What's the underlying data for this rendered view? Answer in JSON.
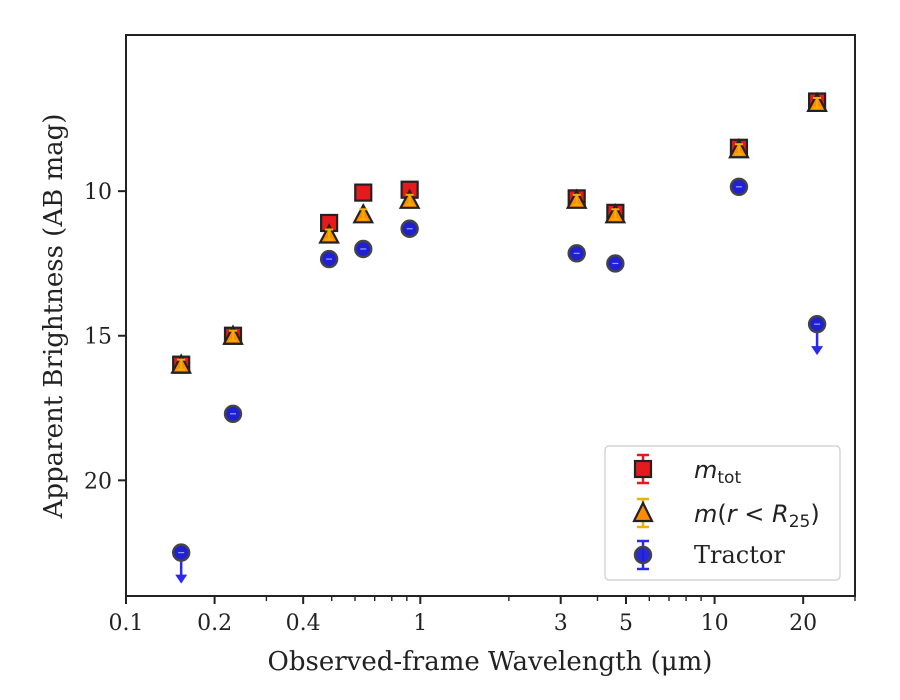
{
  "chart_data": {
    "type": "scatter",
    "xscale": "log",
    "yinvert": true,
    "xlim": [
      0.1,
      30
    ],
    "ylim": [
      24,
      4.6
    ],
    "xlabel": "Observed-frame Wavelength (μm)",
    "ylabel": "Apparent Brightness (AB mag)",
    "xticks": [
      {
        "value": 0.1,
        "label": "0.1"
      },
      {
        "value": 0.2,
        "label": "0.2"
      },
      {
        "value": 0.4,
        "label": "0.4"
      },
      {
        "value": 1,
        "label": "1"
      },
      {
        "value": 3,
        "label": "3"
      },
      {
        "value": 5,
        "label": "5"
      },
      {
        "value": 10,
        "label": "10"
      },
      {
        "value": 20,
        "label": "20"
      }
    ],
    "yticks": [
      {
        "value": 10,
        "label": "10"
      },
      {
        "value": 15,
        "label": "15"
      },
      {
        "value": 20,
        "label": "20"
      }
    ],
    "legend_position": "lower right",
    "grid": false,
    "series": [
      {
        "legend_label": "m_tot",
        "marker": "square",
        "color": "#e41a1c",
        "errcolor": "#e41a1c",
        "points": [
          {
            "x": 0.154,
            "y": 16.0
          },
          {
            "x": 0.231,
            "y": 15.0
          },
          {
            "x": 0.49,
            "y": 11.1
          },
          {
            "x": 0.64,
            "y": 10.05
          },
          {
            "x": 0.92,
            "y": 9.95
          },
          {
            "x": 3.4,
            "y": 10.25
          },
          {
            "x": 4.6,
            "y": 10.75
          },
          {
            "x": 12.1,
            "y": 8.5
          },
          {
            "x": 22.3,
            "y": 6.9
          }
        ]
      },
      {
        "legend_label": "m(r<R25)",
        "marker": "triangle",
        "color": "#ff8c00",
        "errcolor": "#f0b000",
        "points": [
          {
            "x": 0.154,
            "y": 16.0
          },
          {
            "x": 0.231,
            "y": 15.0
          },
          {
            "x": 0.49,
            "y": 11.5
          },
          {
            "x": 0.64,
            "y": 10.8
          },
          {
            "x": 0.92,
            "y": 10.3
          },
          {
            "x": 3.4,
            "y": 10.3
          },
          {
            "x": 4.6,
            "y": 10.8
          },
          {
            "x": 12.1,
            "y": 8.55
          },
          {
            "x": 22.3,
            "y": 6.95
          }
        ]
      },
      {
        "legend_label": "Tractor",
        "marker": "circle",
        "color": "#1f1fd6",
        "errcolor": "#2a2aee",
        "points": [
          {
            "x": 0.154,
            "y": 22.5,
            "upper_limit": true
          },
          {
            "x": 0.231,
            "y": 17.7
          },
          {
            "x": 0.49,
            "y": 12.35
          },
          {
            "x": 0.64,
            "y": 12.0
          },
          {
            "x": 0.92,
            "y": 11.3
          },
          {
            "x": 3.4,
            "y": 12.15
          },
          {
            "x": 4.6,
            "y": 12.5
          },
          {
            "x": 12.1,
            "y": 9.85
          },
          {
            "x": 22.3,
            "y": 14.6,
            "upper_limit": true
          }
        ]
      }
    ]
  },
  "legend": {
    "mtot_base": "m",
    "mtot_sub": "tot",
    "mr_base": "m",
    "mr_paren_open": "(",
    "mr_r": "r",
    "mr_lt": " < ",
    "mr_R": "R",
    "mr_sub": "25",
    "mr_paren_close": ")",
    "tractor": "Tractor"
  }
}
